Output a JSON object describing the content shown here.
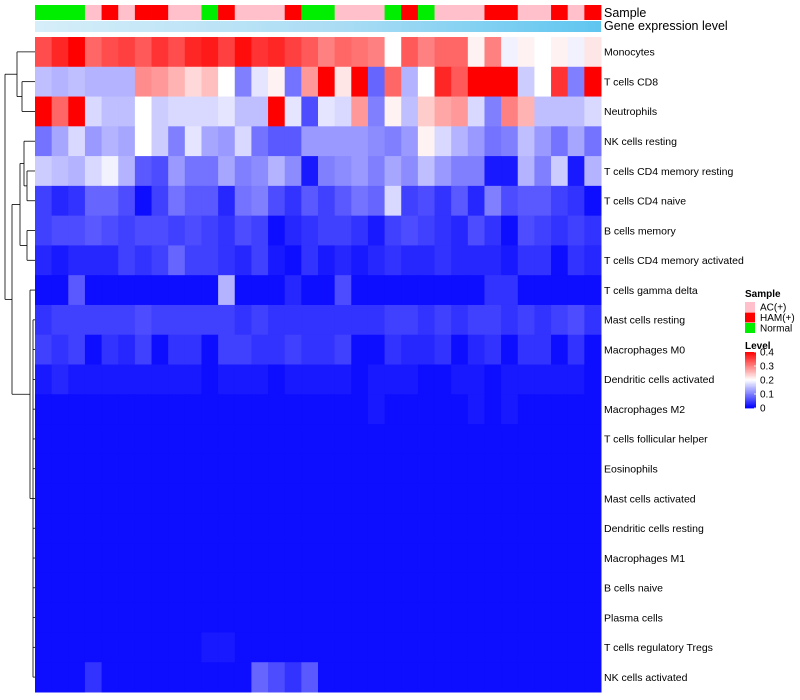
{
  "chart_data": {
    "type": "heatmap",
    "title": "",
    "annotation_rows": [
      "Sample",
      "Gene expression level"
    ],
    "sample_groups": [
      "Normal",
      "Normal",
      "Normal",
      "AC(+)",
      "HAM(+)",
      "AC(+)",
      "HAM(+)",
      "HAM(+)",
      "AC(+)",
      "AC(+)",
      "Normal",
      "HAM(+)",
      "AC(+)",
      "AC(+)",
      "AC(+)",
      "HAM(+)",
      "Normal",
      "Normal",
      "AC(+)",
      "AC(+)",
      "AC(+)",
      "Normal",
      "HAM(+)",
      "Normal",
      "AC(+)",
      "AC(+)",
      "AC(+)",
      "HAM(+)",
      "HAM(+)",
      "AC(+)",
      "AC(+)",
      "HAM(+)",
      "AC(+)",
      "HAM(+)"
    ],
    "rows": [
      "Monocytes",
      "T cells CD8",
      "Neutrophils",
      "NK cells resting",
      "T cells CD4 memory resting",
      "T cells CD4 naive",
      "B cells memory",
      "T cells CD4 memory activated",
      "T cells gamma delta",
      "Mast cells resting",
      "Macrophages M0",
      "Dendritic cells activated",
      "Macrophages M2",
      "T cells follicular helper",
      "Eosinophils",
      "Mast cells activated",
      "Dendritic cells resting",
      "Macrophages M1",
      "B cells naive",
      "Plasma cells",
      "T cells regulatory  Tregs",
      "NK cells activated"
    ],
    "values": [
      [
        0.34,
        0.37,
        0.4,
        0.32,
        0.34,
        0.35,
        0.33,
        0.36,
        0.34,
        0.37,
        0.38,
        0.35,
        0.39,
        0.36,
        0.37,
        0.35,
        0.33,
        0.3,
        0.32,
        0.31,
        0.3,
        0.2,
        0.33,
        0.3,
        0.32,
        0.32,
        0.21,
        0.3,
        0.19,
        0.21,
        0.2,
        0.21,
        0.19,
        0.22
      ],
      [
        0.15,
        0.14,
        0.15,
        0.14,
        0.14,
        0.14,
        0.29,
        0.28,
        0.26,
        0.23,
        0.25,
        0.2,
        0.1,
        0.18,
        0.21,
        0.09,
        0.28,
        0.42,
        0.22,
        0.4,
        0.08,
        0.32,
        0.14,
        0.2,
        0.37,
        0.33,
        0.4,
        0.42,
        0.42,
        0.16,
        0.2,
        0.36,
        0.1,
        0.4
      ],
      [
        0.4,
        0.32,
        0.4,
        0.17,
        0.15,
        0.15,
        0.2,
        0.16,
        0.17,
        0.17,
        0.17,
        0.18,
        0.15,
        0.15,
        0.4,
        0.18,
        0.06,
        0.18,
        0.17,
        0.28,
        0.1,
        0.21,
        0.15,
        0.24,
        0.27,
        0.28,
        0.17,
        0.1,
        0.3,
        0.26,
        0.15,
        0.15,
        0.15,
        0.17
      ],
      [
        0.09,
        0.13,
        0.17,
        0.12,
        0.14,
        0.13,
        0.2,
        0.16,
        0.1,
        0.18,
        0.13,
        0.12,
        0.17,
        0.09,
        0.07,
        0.07,
        0.12,
        0.12,
        0.12,
        0.12,
        0.11,
        0.1,
        0.12,
        0.21,
        0.17,
        0.14,
        0.12,
        0.09,
        0.1,
        0.15,
        0.12,
        0.09,
        0.13,
        0.09
      ],
      [
        0.16,
        0.15,
        0.14,
        0.17,
        0.19,
        0.14,
        0.07,
        0.06,
        0.12,
        0.09,
        0.09,
        0.13,
        0.1,
        0.11,
        0.14,
        0.11,
        0.02,
        0.1,
        0.11,
        0.12,
        0.1,
        0.13,
        0.11,
        0.15,
        0.12,
        0.1,
        0.1,
        0.02,
        0.02,
        0.14,
        0.1,
        0.16,
        0.02,
        0.14
      ],
      [
        0.05,
        0.03,
        0.04,
        0.08,
        0.08,
        0.06,
        0.01,
        0.05,
        0.09,
        0.07,
        0.07,
        0.03,
        0.09,
        0.1,
        0.06,
        0.04,
        0.07,
        0.05,
        0.07,
        0.09,
        0.08,
        0.17,
        0.05,
        0.06,
        0.04,
        0.07,
        0.03,
        0.1,
        0.06,
        0.07,
        0.07,
        0.05,
        0.04,
        0.01
      ],
      [
        0.05,
        0.06,
        0.06,
        0.07,
        0.06,
        0.05,
        0.06,
        0.06,
        0.05,
        0.06,
        0.05,
        0.04,
        0.06,
        0.05,
        0.01,
        0.03,
        0.04,
        0.05,
        0.05,
        0.04,
        0.02,
        0.05,
        0.06,
        0.05,
        0.04,
        0.03,
        0.06,
        0.04,
        0.01,
        0.06,
        0.05,
        0.04,
        0.05,
        0.04
      ],
      [
        0.03,
        0.02,
        0.03,
        0.03,
        0.03,
        0.05,
        0.04,
        0.05,
        0.08,
        0.05,
        0.05,
        0.04,
        0.03,
        0.05,
        0.02,
        0.01,
        0.04,
        0.02,
        0.03,
        0.02,
        0.03,
        0.04,
        0.03,
        0.03,
        0.04,
        0.03,
        0.03,
        0.03,
        0.02,
        0.04,
        0.04,
        0.01,
        0.04,
        0.03
      ],
      [
        0.01,
        0.01,
        0.07,
        0.01,
        0.01,
        0.01,
        0.01,
        0.01,
        0.01,
        0.01,
        0.01,
        0.14,
        0.01,
        0.01,
        0.01,
        0.03,
        0.01,
        0.01,
        0.06,
        0.01,
        0.01,
        0.01,
        0.01,
        0.01,
        0.01,
        0.01,
        0.01,
        0.04,
        0.04,
        0.01,
        0.01,
        0.01,
        0.01,
        0.01
      ],
      [
        0.04,
        0.05,
        0.05,
        0.05,
        0.05,
        0.05,
        0.06,
        0.05,
        0.05,
        0.05,
        0.05,
        0.05,
        0.04,
        0.05,
        0.04,
        0.04,
        0.04,
        0.04,
        0.04,
        0.04,
        0.04,
        0.05,
        0.05,
        0.04,
        0.05,
        0.04,
        0.05,
        0.05,
        0.04,
        0.05,
        0.04,
        0.05,
        0.06,
        0.04
      ],
      [
        0.05,
        0.04,
        0.05,
        0.01,
        0.04,
        0.03,
        0.05,
        0.01,
        0.04,
        0.04,
        0.01,
        0.05,
        0.05,
        0.04,
        0.04,
        0.05,
        0.04,
        0.04,
        0.05,
        0.01,
        0.01,
        0.04,
        0.03,
        0.03,
        0.04,
        0.01,
        0.03,
        0.04,
        0.01,
        0.04,
        0.04,
        0.01,
        0.04,
        0.01
      ],
      [
        0.02,
        0.03,
        0.02,
        0.02,
        0.02,
        0.02,
        0.02,
        0.02,
        0.02,
        0.02,
        0.01,
        0.02,
        0.02,
        0.02,
        0.01,
        0.02,
        0.02,
        0.02,
        0.02,
        0.01,
        0.02,
        0.02,
        0.02,
        0.01,
        0.01,
        0.02,
        0.02,
        0.01,
        0.02,
        0.02,
        0.02,
        0.02,
        0.02,
        0.01
      ],
      [
        0.01,
        0.01,
        0.01,
        0.01,
        0.01,
        0.01,
        0.01,
        0.01,
        0.01,
        0.01,
        0.01,
        0.01,
        0.01,
        0.01,
        0.01,
        0.01,
        0.01,
        0.01,
        0.01,
        0.01,
        0.02,
        0.01,
        0.01,
        0.01,
        0.01,
        0.01,
        0.02,
        0.01,
        0.02,
        0.01,
        0.01,
        0.01,
        0.01,
        0.01
      ],
      [
        0.01,
        0.01,
        0.01,
        0.01,
        0.01,
        0.01,
        0.01,
        0.01,
        0.01,
        0.01,
        0.01,
        0.01,
        0.01,
        0.01,
        0.01,
        0.01,
        0.01,
        0.01,
        0.01,
        0.01,
        0.01,
        0.01,
        0.01,
        0.01,
        0.01,
        0.01,
        0.01,
        0.01,
        0.01,
        0.01,
        0.01,
        0.01,
        0.01,
        0.01
      ],
      [
        0.01,
        0.01,
        0.01,
        0.01,
        0.01,
        0.01,
        0.01,
        0.01,
        0.01,
        0.01,
        0.01,
        0.01,
        0.01,
        0.01,
        0.01,
        0.01,
        0.01,
        0.01,
        0.01,
        0.01,
        0.01,
        0.01,
        0.01,
        0.01,
        0.01,
        0.01,
        0.01,
        0.01,
        0.01,
        0.01,
        0.01,
        0.01,
        0.01,
        0.01
      ],
      [
        0.01,
        0.01,
        0.01,
        0.01,
        0.01,
        0.01,
        0.01,
        0.01,
        0.01,
        0.01,
        0.01,
        0.01,
        0.01,
        0.01,
        0.01,
        0.01,
        0.01,
        0.01,
        0.01,
        0.01,
        0.01,
        0.01,
        0.01,
        0.01,
        0.01,
        0.01,
        0.01,
        0.01,
        0.01,
        0.01,
        0.01,
        0.01,
        0.01,
        0.01
      ],
      [
        0.01,
        0.01,
        0.01,
        0.01,
        0.01,
        0.01,
        0.01,
        0.01,
        0.01,
        0.01,
        0.01,
        0.01,
        0.01,
        0.01,
        0.01,
        0.01,
        0.01,
        0.01,
        0.01,
        0.01,
        0.01,
        0.01,
        0.01,
        0.01,
        0.01,
        0.01,
        0.01,
        0.01,
        0.01,
        0.01,
        0.01,
        0.01,
        0.01,
        0.01
      ],
      [
        0.01,
        0.01,
        0.01,
        0.01,
        0.01,
        0.01,
        0.01,
        0.01,
        0.01,
        0.01,
        0.01,
        0.01,
        0.01,
        0.01,
        0.01,
        0.01,
        0.01,
        0.01,
        0.01,
        0.01,
        0.01,
        0.01,
        0.01,
        0.01,
        0.01,
        0.01,
        0.01,
        0.01,
        0.01,
        0.01,
        0.01,
        0.01,
        0.01,
        0.01
      ],
      [
        0.01,
        0.01,
        0.01,
        0.01,
        0.01,
        0.01,
        0.01,
        0.01,
        0.01,
        0.01,
        0.01,
        0.01,
        0.01,
        0.01,
        0.01,
        0.01,
        0.01,
        0.01,
        0.01,
        0.01,
        0.01,
        0.01,
        0.01,
        0.01,
        0.01,
        0.01,
        0.01,
        0.01,
        0.01,
        0.01,
        0.01,
        0.01,
        0.01,
        0.01
      ],
      [
        0.01,
        0.01,
        0.01,
        0.01,
        0.01,
        0.01,
        0.01,
        0.01,
        0.01,
        0.01,
        0.01,
        0.01,
        0.01,
        0.01,
        0.01,
        0.01,
        0.01,
        0.01,
        0.01,
        0.01,
        0.01,
        0.01,
        0.01,
        0.01,
        0.01,
        0.01,
        0.01,
        0.01,
        0.01,
        0.01,
        0.01,
        0.01,
        0.01,
        0.01
      ],
      [
        0.01,
        0.01,
        0.01,
        0.01,
        0.01,
        0.01,
        0.01,
        0.01,
        0.01,
        0.01,
        0.02,
        0.02,
        0.01,
        0.01,
        0.01,
        0.01,
        0.01,
        0.01,
        0.01,
        0.01,
        0.01,
        0.01,
        0.01,
        0.01,
        0.01,
        0.01,
        0.01,
        0.01,
        0.01,
        0.01,
        0.01,
        0.01,
        0.01,
        0.01
      ],
      [
        0.01,
        0.01,
        0.01,
        0.04,
        0.01,
        0.01,
        0.01,
        0.01,
        0.01,
        0.01,
        0.01,
        0.01,
        0.01,
        0.08,
        0.06,
        0.04,
        0.07,
        0.01,
        0.01,
        0.01,
        0.01,
        0.01,
        0.01,
        0.01,
        0.01,
        0.01,
        0.01,
        0.01,
        0.01,
        0.01,
        0.01,
        0.01,
        0.01,
        0.01
      ]
    ],
    "legend_sample": {
      "title": "Sample",
      "entries": [
        {
          "label": "AC(+)",
          "color": "#ffc0cb"
        },
        {
          "label": "HAM(+)",
          "color": "#ff0000"
        },
        {
          "label": "Normal",
          "color": "#00ee00"
        }
      ]
    },
    "legend_level": {
      "title": "Level",
      "range": [
        0,
        0.4
      ],
      "ticks": [
        "0.4",
        "0.3",
        "0.2",
        "0.1",
        "0"
      ],
      "tick_values": [
        0.4,
        0.3,
        0.2,
        0.1,
        0
      ]
    },
    "colors": {
      "low": "#0000ff",
      "mid": "#ffffff",
      "high": "#ff0000",
      "expression_bar": "#5fc6f0",
      "expression_bar_light": "#d6eef9"
    }
  }
}
